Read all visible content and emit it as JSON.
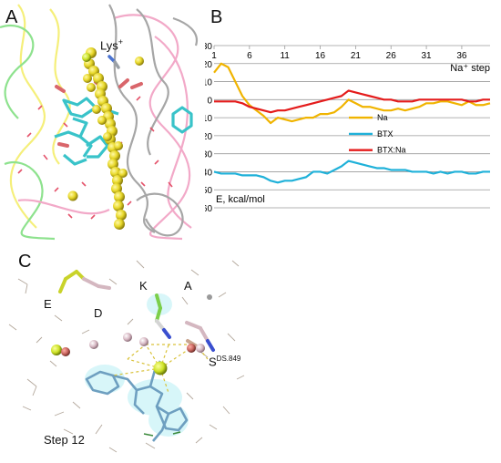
{
  "panels": {
    "a": {
      "label": "A",
      "annotation": "Lys",
      "annotation_sup": "+"
    },
    "b": {
      "label": "B"
    },
    "c": {
      "label": "C",
      "residue_labels": {
        "e": "E",
        "d": "D",
        "k": "K",
        "a": "A",
        "s": "S",
        "s_sup": "DS.849"
      },
      "step_caption": "Step 12"
    }
  },
  "colors": {
    "na": "#f0b400",
    "btx": "#1fb1d9",
    "btx_na": "#e41b1b",
    "yellow_atom": "#e8d82a",
    "cyan_stick": "#39c3c9",
    "pink_ribbon": "#f2a9c8",
    "green_ribbon": "#8ee28e",
    "yellow_ribbon": "#f5ef7a",
    "gray_ribbon": "#a6a6a6"
  },
  "chart_data": {
    "type": "line",
    "title": "",
    "xlabel": "Na⁺ step",
    "ylabel": "E, kcal/mol",
    "x_tick_labels": [
      "1",
      "6",
      "11",
      "16",
      "21",
      "26",
      "31",
      "36"
    ],
    "x_tick_values": [
      1,
      6,
      11,
      16,
      21,
      26,
      31,
      36
    ],
    "xlim": [
      1,
      40
    ],
    "y_tick_labels": [
      "30",
      "20",
      "10",
      "0",
      "-10",
      "-20",
      "-30",
      "-40",
      "-50",
      "-60"
    ],
    "ylim": [
      -60,
      30
    ],
    "grid": true,
    "legend_position": "center-right",
    "x": [
      1,
      2,
      3,
      4,
      5,
      6,
      7,
      8,
      9,
      10,
      11,
      12,
      13,
      14,
      15,
      16,
      17,
      18,
      19,
      20,
      21,
      22,
      23,
      24,
      25,
      26,
      27,
      28,
      29,
      30,
      31,
      32,
      33,
      34,
      35,
      36,
      37,
      38,
      39,
      40
    ],
    "series": [
      {
        "name": "Na",
        "color_key": "na",
        "values": [
          15,
          20,
          18,
          10,
          2,
          -3,
          -6,
          -9,
          -13,
          -10,
          -11,
          -12,
          -11,
          -10,
          -10,
          -8,
          -8,
          -7,
          -4,
          0,
          -2,
          -4,
          -4,
          -5,
          -6,
          -6,
          -5,
          -6,
          -5,
          -4,
          -2,
          -2,
          -1,
          -1,
          -2,
          -3,
          -1,
          -3,
          -3,
          -2
        ]
      },
      {
        "name": "BTX",
        "color_key": "btx",
        "values": [
          -40,
          -41,
          -41,
          -41,
          -42,
          -42,
          -42,
          -43,
          -45,
          -46,
          -45,
          -45,
          -44,
          -43,
          -40,
          -40,
          -41,
          -39,
          -37,
          -34,
          -35,
          -36,
          -37,
          -38,
          -38,
          -39,
          -39,
          -39,
          -40,
          -40,
          -40,
          -41,
          -40,
          -41,
          -40,
          -40,
          -41,
          -41,
          -40,
          -40
        ]
      },
      {
        "name": "BTX:Na",
        "color_key": "btx_na",
        "values": [
          -1,
          -1,
          -1,
          -1,
          -2,
          -4,
          -5,
          -6,
          -7,
          -6,
          -6,
          -5,
          -4,
          -3,
          -2,
          -1,
          0,
          1,
          2,
          5,
          4,
          3,
          2,
          1,
          0,
          0,
          -1,
          -1,
          -1,
          0,
          0,
          0,
          0,
          0,
          0,
          0,
          -1,
          -1,
          0,
          0
        ]
      }
    ]
  }
}
